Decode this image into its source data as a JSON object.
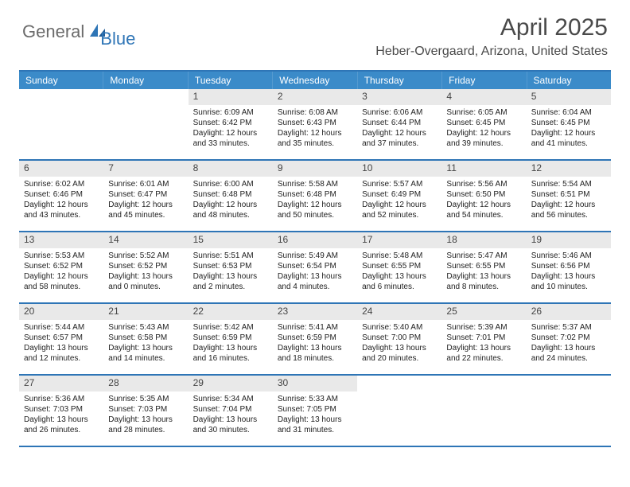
{
  "logo": {
    "text1": "General",
    "text2": "Blue"
  },
  "title": "April 2025",
  "location": "Heber-Overgaard, Arizona, United States",
  "colors": {
    "header_bg": "#3b8bc9",
    "border": "#2e75b6",
    "daynum_bg": "#e9e9e9",
    "text": "#333333",
    "logo_gray": "#6b6b6b",
    "logo_blue": "#2e75b6"
  },
  "day_labels": [
    "Sunday",
    "Monday",
    "Tuesday",
    "Wednesday",
    "Thursday",
    "Friday",
    "Saturday"
  ],
  "weeks": [
    [
      {
        "n": "",
        "lines": []
      },
      {
        "n": "",
        "lines": []
      },
      {
        "n": "1",
        "lines": [
          "Sunrise: 6:09 AM",
          "Sunset: 6:42 PM",
          "Daylight: 12 hours",
          "and 33 minutes."
        ]
      },
      {
        "n": "2",
        "lines": [
          "Sunrise: 6:08 AM",
          "Sunset: 6:43 PM",
          "Daylight: 12 hours",
          "and 35 minutes."
        ]
      },
      {
        "n": "3",
        "lines": [
          "Sunrise: 6:06 AM",
          "Sunset: 6:44 PM",
          "Daylight: 12 hours",
          "and 37 minutes."
        ]
      },
      {
        "n": "4",
        "lines": [
          "Sunrise: 6:05 AM",
          "Sunset: 6:45 PM",
          "Daylight: 12 hours",
          "and 39 minutes."
        ]
      },
      {
        "n": "5",
        "lines": [
          "Sunrise: 6:04 AM",
          "Sunset: 6:45 PM",
          "Daylight: 12 hours",
          "and 41 minutes."
        ]
      }
    ],
    [
      {
        "n": "6",
        "lines": [
          "Sunrise: 6:02 AM",
          "Sunset: 6:46 PM",
          "Daylight: 12 hours",
          "and 43 minutes."
        ]
      },
      {
        "n": "7",
        "lines": [
          "Sunrise: 6:01 AM",
          "Sunset: 6:47 PM",
          "Daylight: 12 hours",
          "and 45 minutes."
        ]
      },
      {
        "n": "8",
        "lines": [
          "Sunrise: 6:00 AM",
          "Sunset: 6:48 PM",
          "Daylight: 12 hours",
          "and 48 minutes."
        ]
      },
      {
        "n": "9",
        "lines": [
          "Sunrise: 5:58 AM",
          "Sunset: 6:48 PM",
          "Daylight: 12 hours",
          "and 50 minutes."
        ]
      },
      {
        "n": "10",
        "lines": [
          "Sunrise: 5:57 AM",
          "Sunset: 6:49 PM",
          "Daylight: 12 hours",
          "and 52 minutes."
        ]
      },
      {
        "n": "11",
        "lines": [
          "Sunrise: 5:56 AM",
          "Sunset: 6:50 PM",
          "Daylight: 12 hours",
          "and 54 minutes."
        ]
      },
      {
        "n": "12",
        "lines": [
          "Sunrise: 5:54 AM",
          "Sunset: 6:51 PM",
          "Daylight: 12 hours",
          "and 56 minutes."
        ]
      }
    ],
    [
      {
        "n": "13",
        "lines": [
          "Sunrise: 5:53 AM",
          "Sunset: 6:52 PM",
          "Daylight: 12 hours",
          "and 58 minutes."
        ]
      },
      {
        "n": "14",
        "lines": [
          "Sunrise: 5:52 AM",
          "Sunset: 6:52 PM",
          "Daylight: 13 hours",
          "and 0 minutes."
        ]
      },
      {
        "n": "15",
        "lines": [
          "Sunrise: 5:51 AM",
          "Sunset: 6:53 PM",
          "Daylight: 13 hours",
          "and 2 minutes."
        ]
      },
      {
        "n": "16",
        "lines": [
          "Sunrise: 5:49 AM",
          "Sunset: 6:54 PM",
          "Daylight: 13 hours",
          "and 4 minutes."
        ]
      },
      {
        "n": "17",
        "lines": [
          "Sunrise: 5:48 AM",
          "Sunset: 6:55 PM",
          "Daylight: 13 hours",
          "and 6 minutes."
        ]
      },
      {
        "n": "18",
        "lines": [
          "Sunrise: 5:47 AM",
          "Sunset: 6:55 PM",
          "Daylight: 13 hours",
          "and 8 minutes."
        ]
      },
      {
        "n": "19",
        "lines": [
          "Sunrise: 5:46 AM",
          "Sunset: 6:56 PM",
          "Daylight: 13 hours",
          "and 10 minutes."
        ]
      }
    ],
    [
      {
        "n": "20",
        "lines": [
          "Sunrise: 5:44 AM",
          "Sunset: 6:57 PM",
          "Daylight: 13 hours",
          "and 12 minutes."
        ]
      },
      {
        "n": "21",
        "lines": [
          "Sunrise: 5:43 AM",
          "Sunset: 6:58 PM",
          "Daylight: 13 hours",
          "and 14 minutes."
        ]
      },
      {
        "n": "22",
        "lines": [
          "Sunrise: 5:42 AM",
          "Sunset: 6:59 PM",
          "Daylight: 13 hours",
          "and 16 minutes."
        ]
      },
      {
        "n": "23",
        "lines": [
          "Sunrise: 5:41 AM",
          "Sunset: 6:59 PM",
          "Daylight: 13 hours",
          "and 18 minutes."
        ]
      },
      {
        "n": "24",
        "lines": [
          "Sunrise: 5:40 AM",
          "Sunset: 7:00 PM",
          "Daylight: 13 hours",
          "and 20 minutes."
        ]
      },
      {
        "n": "25",
        "lines": [
          "Sunrise: 5:39 AM",
          "Sunset: 7:01 PM",
          "Daylight: 13 hours",
          "and 22 minutes."
        ]
      },
      {
        "n": "26",
        "lines": [
          "Sunrise: 5:37 AM",
          "Sunset: 7:02 PM",
          "Daylight: 13 hours",
          "and 24 minutes."
        ]
      }
    ],
    [
      {
        "n": "27",
        "lines": [
          "Sunrise: 5:36 AM",
          "Sunset: 7:03 PM",
          "Daylight: 13 hours",
          "and 26 minutes."
        ]
      },
      {
        "n": "28",
        "lines": [
          "Sunrise: 5:35 AM",
          "Sunset: 7:03 PM",
          "Daylight: 13 hours",
          "and 28 minutes."
        ]
      },
      {
        "n": "29",
        "lines": [
          "Sunrise: 5:34 AM",
          "Sunset: 7:04 PM",
          "Daylight: 13 hours",
          "and 30 minutes."
        ]
      },
      {
        "n": "30",
        "lines": [
          "Sunrise: 5:33 AM",
          "Sunset: 7:05 PM",
          "Daylight: 13 hours",
          "and 31 minutes."
        ]
      },
      {
        "n": "",
        "lines": []
      },
      {
        "n": "",
        "lines": []
      },
      {
        "n": "",
        "lines": []
      }
    ]
  ]
}
